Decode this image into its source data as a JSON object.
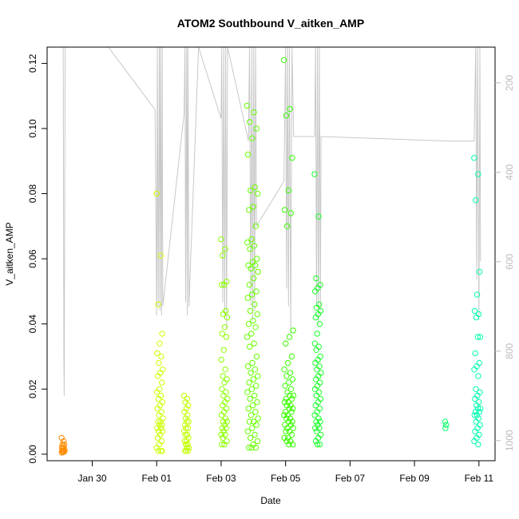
{
  "chart_data": {
    "type": "scatter",
    "title": "ATOM2 Southbound V_aitken_AMP",
    "xlabel": "Date",
    "ylabel": "V_aitken_AMP",
    "x_tick_labels": [
      "Jan 30",
      "Feb 01",
      "Feb 03",
      "Feb 05",
      "Feb 07",
      "Feb 09",
      "Feb 11"
    ],
    "x_tick_days": [
      30,
      32,
      34,
      36,
      38,
      40,
      42
    ],
    "xlim_days": [
      28.6,
      42.5
    ],
    "y_tick_labels": [
      "0.00",
      "0.02",
      "0.04",
      "0.06",
      "0.08",
      "0.10",
      "0.12"
    ],
    "y_ticks": [
      0,
      0.02,
      0.04,
      0.06,
      0.08,
      0.1,
      0.12
    ],
    "ylim": [
      -0.002,
      0.125
    ],
    "y2_tick_labels": [
      "200",
      "400",
      "600",
      "800",
      "1000"
    ],
    "y2_ticks": [
      200,
      400,
      600,
      800,
      1000
    ],
    "y2lim": [
      120,
      1045
    ],
    "y2_reversed": true,
    "grid": false,
    "legend": "none",
    "altitude_color": "#c8c8c8",
    "marker": "open-circle",
    "series": [
      {
        "color": "#ff8c00",
        "x_start": 29.05,
        "x_end": 29.15,
        "values": [
          0.005,
          0.004,
          0.003,
          0.003,
          0.0025,
          0.002,
          0.002,
          0.0015,
          0.0012,
          0.001,
          0.001,
          0.0008,
          0.0006,
          0.0005
        ]
      },
      {
        "color": "#ccff00",
        "x_start": 32.0,
        "x_end": 32.2,
        "values": [
          0.08,
          0.061,
          0.046,
          0.037,
          0.034,
          0.031,
          0.03,
          0.028,
          0.026,
          0.025,
          0.024,
          0.022,
          0.02,
          0.019,
          0.018,
          0.017,
          0.016,
          0.015,
          0.014,
          0.013,
          0.012,
          0.011,
          0.01,
          0.01,
          0.009,
          0.009,
          0.008,
          0.008,
          0.007,
          0.007,
          0.006,
          0.005,
          0.004,
          0.003,
          0.002,
          0.001,
          0.001,
          0.001
        ]
      },
      {
        "color": "#c2ff00",
        "x_start": 32.85,
        "x_end": 33.0,
        "values": [
          0.018,
          0.017,
          0.016,
          0.015,
          0.014,
          0.013,
          0.012,
          0.011,
          0.01,
          0.01,
          0.009,
          0.008,
          0.008,
          0.007,
          0.006,
          0.006,
          0.005,
          0.004,
          0.004,
          0.003,
          0.003,
          0.002,
          0.002,
          0.001,
          0.001,
          0.001
        ]
      },
      {
        "color": "#8cff00",
        "x_start": 34.0,
        "x_end": 34.2,
        "values": [
          0.066,
          0.063,
          0.061,
          0.053,
          0.052,
          0.052,
          0.044,
          0.043,
          0.042,
          0.039,
          0.037,
          0.036,
          0.032,
          0.029,
          0.026,
          0.024,
          0.023,
          0.022,
          0.02,
          0.019,
          0.018,
          0.017,
          0.016,
          0.015,
          0.014,
          0.013,
          0.012,
          0.011,
          0.01,
          0.01,
          0.009,
          0.008,
          0.008,
          0.007,
          0.006,
          0.006,
          0.005,
          0.004,
          0.003,
          0.003
        ]
      },
      {
        "color": "#66ff00",
        "x_start": 34.8,
        "x_end": 35.15,
        "values": [
          0.107,
          0.105,
          0.102,
          0.1,
          0.097,
          0.092,
          0.082,
          0.081,
          0.08,
          0.076,
          0.075,
          0.07,
          0.066,
          0.065,
          0.064,
          0.063,
          0.06,
          0.059,
          0.058,
          0.058,
          0.057,
          0.056,
          0.054,
          0.052,
          0.05,
          0.049,
          0.048,
          0.046,
          0.044,
          0.043,
          0.041,
          0.04,
          0.039,
          0.037,
          0.036,
          0.034,
          0.033,
          0.03,
          0.028,
          0.027,
          0.026,
          0.025,
          0.024,
          0.023,
          0.022,
          0.021,
          0.02,
          0.019,
          0.018,
          0.017,
          0.016,
          0.015,
          0.014,
          0.013,
          0.012,
          0.011,
          0.01,
          0.01,
          0.009,
          0.008,
          0.007,
          0.006,
          0.005,
          0.004,
          0.003,
          0.002,
          0.002,
          0.002
        ]
      },
      {
        "color": "#3aff00",
        "x_start": 35.95,
        "x_end": 36.25,
        "values": [
          0.121,
          0.106,
          0.104,
          0.091,
          0.081,
          0.075,
          0.074,
          0.07,
          0.038,
          0.036,
          0.034,
          0.03,
          0.028,
          0.026,
          0.025,
          0.024,
          0.023,
          0.022,
          0.021,
          0.02,
          0.019,
          0.018,
          0.018,
          0.017,
          0.017,
          0.016,
          0.016,
          0.015,
          0.015,
          0.014,
          0.014,
          0.013,
          0.013,
          0.012,
          0.012,
          0.011,
          0.011,
          0.01,
          0.01,
          0.009,
          0.009,
          0.008,
          0.008,
          0.007,
          0.007,
          0.006,
          0.005,
          0.005,
          0.004,
          0.004,
          0.003,
          0.003
        ]
      },
      {
        "color": "#1aff2a",
        "x_start": 36.9,
        "x_end": 37.1,
        "values": [
          0.086,
          0.073,
          0.054,
          0.052,
          0.051,
          0.05,
          0.046,
          0.045,
          0.044,
          0.043,
          0.042,
          0.04,
          0.037,
          0.034,
          0.033,
          0.032,
          0.03,
          0.029,
          0.028,
          0.027,
          0.026,
          0.025,
          0.024,
          0.023,
          0.022,
          0.021,
          0.02,
          0.019,
          0.018,
          0.017,
          0.016,
          0.015,
          0.014,
          0.013,
          0.012,
          0.011,
          0.01,
          0.01,
          0.009,
          0.008,
          0.008,
          0.007,
          0.006,
          0.005,
          0.004,
          0.003,
          0.003
        ]
      },
      {
        "color": "#00ff66",
        "x_start": 40.95,
        "x_end": 41.0,
        "values": [
          0.01,
          0.009,
          0.008
        ]
      },
      {
        "color": "#00ffb2",
        "x_start": 41.85,
        "x_end": 42.05,
        "values": [
          0.091,
          0.086,
          0.078,
          0.056,
          0.049,
          0.044,
          0.043,
          0.042,
          0.036,
          0.036,
          0.031,
          0.028,
          0.027,
          0.026,
          0.024,
          0.02,
          0.019,
          0.018,
          0.017,
          0.016,
          0.015,
          0.014,
          0.014,
          0.013,
          0.013,
          0.012,
          0.012,
          0.011,
          0.01,
          0.009,
          0.008,
          0.007,
          0.006,
          0.005,
          0.004,
          0.003
        ]
      }
    ],
    "altitude_trace": [
      [
        29.1,
        120
      ],
      [
        29.12,
        820
      ],
      [
        29.13,
        900
      ],
      [
        29.16,
        120
      ],
      [
        30.5,
        120
      ],
      [
        31.95,
        260
      ],
      [
        32.0,
        720
      ],
      [
        32.02,
        120
      ],
      [
        32.05,
        700
      ],
      [
        32.08,
        120
      ],
      [
        32.1,
        710
      ],
      [
        32.12,
        120
      ],
      [
        32.15,
        720
      ],
      [
        32.17,
        120
      ],
      [
        32.19,
        700
      ],
      [
        32.85,
        270
      ],
      [
        32.88,
        120
      ],
      [
        32.9,
        690
      ],
      [
        32.93,
        120
      ],
      [
        32.95,
        720
      ],
      [
        32.97,
        120
      ],
      [
        33.0,
        700
      ],
      [
        33.3,
        120
      ],
      [
        34.0,
        280
      ],
      [
        34.02,
        120
      ],
      [
        34.05,
        690
      ],
      [
        34.08,
        120
      ],
      [
        34.11,
        720
      ],
      [
        34.14,
        120
      ],
      [
        34.17,
        750
      ],
      [
        34.2,
        120
      ],
      [
        34.85,
        330
      ],
      [
        34.88,
        120
      ],
      [
        34.92,
        700
      ],
      [
        34.95,
        120
      ],
      [
        34.98,
        730
      ],
      [
        35.01,
        120
      ],
      [
        35.04,
        710
      ],
      [
        35.07,
        120
      ],
      [
        35.1,
        520
      ],
      [
        35.95,
        420
      ],
      [
        36.0,
        120
      ],
      [
        36.03,
        660
      ],
      [
        36.06,
        120
      ],
      [
        36.09,
        700
      ],
      [
        36.12,
        120
      ],
      [
        36.16,
        760
      ],
      [
        36.2,
        120
      ],
      [
        36.25,
        320
      ],
      [
        36.9,
        320
      ],
      [
        36.93,
        120
      ],
      [
        36.96,
        700
      ],
      [
        36.99,
        120
      ],
      [
        37.02,
        740
      ],
      [
        37.05,
        120
      ],
      [
        37.08,
        710
      ],
      [
        37.1,
        320
      ],
      [
        41.0,
        330
      ],
      [
        41.85,
        330
      ],
      [
        41.9,
        120
      ],
      [
        41.93,
        640
      ],
      [
        41.96,
        120
      ],
      [
        42.0,
        730
      ],
      [
        42.03,
        120
      ],
      [
        42.05,
        600
      ]
    ]
  }
}
